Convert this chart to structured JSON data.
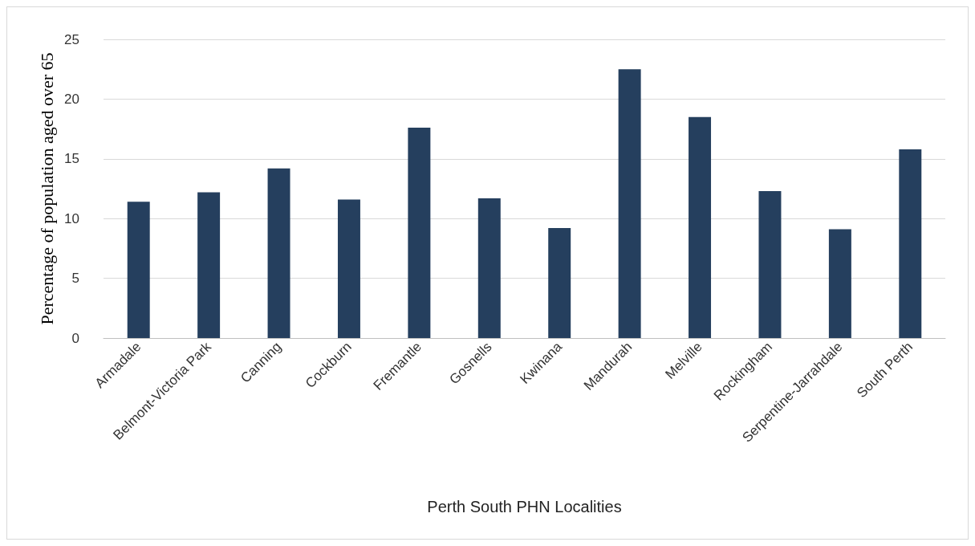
{
  "chart_data": {
    "type": "bar",
    "xlabel": "Perth South PHN Localities",
    "ylabel": "Percentage of population aged over 65",
    "categories": [
      "Armadale",
      "Belmont-Victoria Park",
      "Canning",
      "Cockburn",
      "Fremantle",
      "Gosnells",
      "Kwinana",
      "Mandurah",
      "Melville",
      "Rockingham",
      "Serpentine-Jarrahdale",
      "South Perth"
    ],
    "values": [
      11.4,
      12.2,
      14.2,
      11.6,
      17.6,
      11.7,
      9.2,
      22.5,
      18.5,
      12.3,
      9.1,
      15.8
    ],
    "color": "#253f5e",
    "ylim": [
      0,
      25
    ],
    "yticks": [
      0,
      5,
      10,
      15,
      20,
      25
    ],
    "grid": "y"
  }
}
